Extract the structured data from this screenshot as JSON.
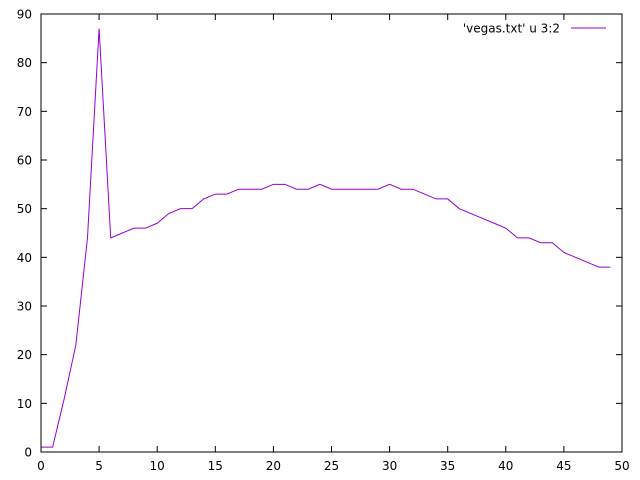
{
  "chart_data": {
    "type": "line",
    "title": "",
    "xlabel": "",
    "ylabel": "",
    "xlim": [
      0,
      50
    ],
    "ylim": [
      0,
      90
    ],
    "x_ticks": [
      0,
      5,
      10,
      15,
      20,
      25,
      30,
      35,
      40,
      45,
      50
    ],
    "y_ticks": [
      0,
      10,
      20,
      30,
      40,
      50,
      60,
      70,
      80,
      90
    ],
    "x_tick_labels": [
      "0",
      "5",
      "10",
      "15",
      "20",
      "25",
      "30",
      "35",
      "40",
      "45",
      "50"
    ],
    "y_tick_labels": [
      "0",
      "10",
      "20",
      "30",
      "40",
      "50",
      "60",
      "70",
      "80",
      "90"
    ],
    "grid": false,
    "legend_position": "top-right",
    "series": [
      {
        "name": "'vegas.txt' u 3:2",
        "color": "#9400d3",
        "x": [
          0,
          1,
          2,
          3,
          4,
          5,
          6,
          7,
          8,
          9,
          10,
          11,
          12,
          13,
          14,
          15,
          16,
          17,
          18,
          19,
          20,
          21,
          22,
          23,
          24,
          25,
          26,
          27,
          28,
          29,
          30,
          31,
          32,
          33,
          34,
          35,
          36,
          37,
          38,
          39,
          40,
          41,
          42,
          43,
          44,
          45,
          46,
          47,
          48,
          49
        ],
        "y": [
          1,
          1,
          11,
          22,
          44,
          87,
          44,
          45,
          46,
          46,
          47,
          49,
          50,
          50,
          52,
          53,
          53,
          54,
          54,
          54,
          55,
          55,
          54,
          54,
          55,
          54,
          54,
          54,
          54,
          54,
          55,
          54,
          54,
          53,
          52,
          52,
          50,
          49,
          48,
          47,
          46,
          44,
          44,
          43,
          43,
          41,
          40,
          39,
          38,
          38
        ]
      }
    ]
  }
}
